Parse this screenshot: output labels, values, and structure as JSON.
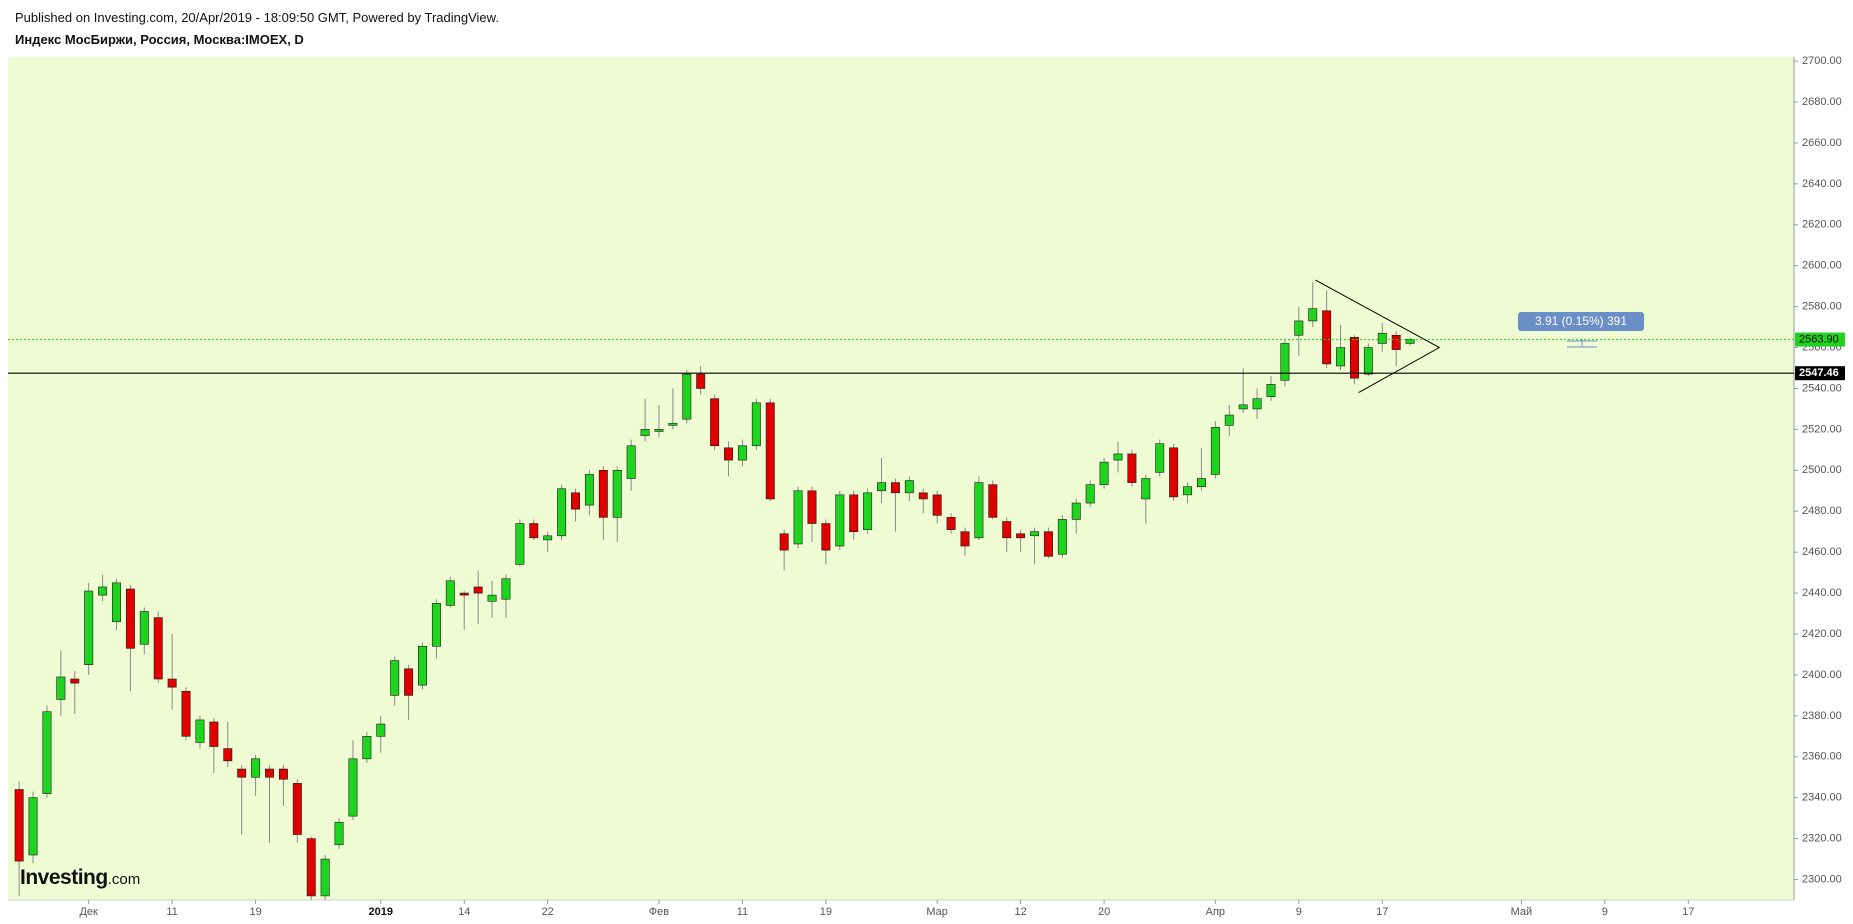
{
  "header": {
    "published": "Published on Investing.com, 20/Apr/2019 - 18:09:50 GMT, Powered by TradingView.",
    "title": "Индекс МосБиржи, Россия, Москва:IMOEX, D"
  },
  "logo": {
    "main": "Investing",
    "suffix": ".com"
  },
  "chart_data": {
    "type": "candlestick",
    "up_color": "#1ed41e",
    "down_color": "#e00000",
    "background": "#effcd3",
    "grid": false,
    "xlim": [
      -0.8,
      127.6
    ],
    "ylim": [
      2290,
      2702
    ],
    "yticks": [
      {
        "value": 2300,
        "label": "2300.00"
      },
      {
        "value": 2320,
        "label": "2320.00"
      },
      {
        "value": 2340,
        "label": "2340.00"
      },
      {
        "value": 2360,
        "label": "2360.00"
      },
      {
        "value": 2380,
        "label": "2380.00"
      },
      {
        "value": 2400,
        "label": "2400.00"
      },
      {
        "value": 2420,
        "label": "2420.00"
      },
      {
        "value": 2440,
        "label": "2440.00"
      },
      {
        "value": 2460,
        "label": "2460.00"
      },
      {
        "value": 2480,
        "label": "2480.00"
      },
      {
        "value": 2500,
        "label": "2500.00"
      },
      {
        "value": 2520,
        "label": "2520.00"
      },
      {
        "value": 2540,
        "label": "2540.00"
      },
      {
        "value": 2560,
        "label": "2560.00"
      },
      {
        "value": 2580,
        "label": "2580.00"
      },
      {
        "value": 2600,
        "label": "2600.00"
      },
      {
        "value": 2620,
        "label": "2620.00"
      },
      {
        "value": 2640,
        "label": "2640.00"
      },
      {
        "value": 2660,
        "label": "2660.00"
      },
      {
        "value": 2680,
        "label": "2680.00"
      },
      {
        "value": 2700,
        "label": "2700.00"
      }
    ],
    "xticks": [
      {
        "value": 5,
        "label": "Дек"
      },
      {
        "value": 11,
        "label": "11"
      },
      {
        "value": 17,
        "label": "19"
      },
      {
        "value": 26,
        "label": "2019"
      },
      {
        "value": 32,
        "label": "14"
      },
      {
        "value": 38,
        "label": "22"
      },
      {
        "value": 46,
        "label": "Фев"
      },
      {
        "value": 52,
        "label": "11"
      },
      {
        "value": 58,
        "label": "19"
      },
      {
        "value": 66,
        "label": "Мар"
      },
      {
        "value": 72,
        "label": "12"
      },
      {
        "value": 78,
        "label": "20"
      },
      {
        "value": 86,
        "label": "Апр"
      },
      {
        "value": 92,
        "label": "9"
      },
      {
        "value": 98,
        "label": "17"
      },
      {
        "value": 108,
        "label": "Май"
      },
      {
        "value": 114,
        "label": "9"
      },
      {
        "value": 120,
        "label": "17"
      }
    ],
    "bold_xtick": "2019",
    "open": [
      2344,
      2312,
      2342,
      2388,
      2398,
      2405,
      2439,
      2426,
      2442,
      2415,
      2428,
      2398,
      2392,
      2367,
      2377,
      2364,
      2354,
      2350,
      2354,
      2354,
      2347,
      2320,
      2292,
      2317,
      2331,
      2359,
      2370,
      2390,
      2403,
      2395,
      2414,
      2434,
      2440,
      2443,
      2436,
      2437,
      2454,
      2474,
      2466,
      2468,
      2489,
      2483,
      2500,
      2477,
      2496,
      2517,
      2519,
      2522,
      2525,
      2547,
      2535,
      2511,
      2505,
      2512,
      2533,
      2469,
      2464,
      2490,
      2474,
      2463,
      2488,
      2471,
      2490,
      2494,
      2489,
      2489,
      2488,
      2477,
      2470,
      2467,
      2493,
      2475,
      2469,
      2468,
      2470,
      2459,
      2476,
      2484,
      2493,
      2505,
      2508,
      2486,
      2499,
      2511,
      2488,
      2492,
      2498,
      2522,
      2530,
      2530,
      2536,
      2544,
      2566,
      2573,
      2578,
      2551,
      2565,
      2547,
      2562,
      2566,
      2562
    ],
    "high": [
      2348,
      2343,
      2385,
      2412,
      2402,
      2445,
      2449,
      2447,
      2444,
      2433,
      2431,
      2420,
      2394,
      2380,
      2379,
      2377,
      2356,
      2361,
      2356,
      2356,
      2349,
      2321,
      2312,
      2330,
      2368,
      2372,
      2380,
      2409,
      2405,
      2416,
      2437,
      2448,
      2441,
      2451,
      2446,
      2449,
      2476,
      2476,
      2470,
      2493,
      2491,
      2500,
      2502,
      2502,
      2515,
      2535,
      2532,
      2540,
      2549,
      2551,
      2537,
      2514,
      2515,
      2535,
      2535,
      2471,
      2492,
      2492,
      2476,
      2490,
      2490,
      2491,
      2506,
      2496,
      2497,
      2491,
      2490,
      2479,
      2472,
      2497,
      2495,
      2477,
      2471,
      2472,
      2472,
      2478,
      2486,
      2495,
      2506,
      2514,
      2510,
      2498,
      2515,
      2513,
      2494,
      2511,
      2524,
      2532,
      2550,
      2540,
      2546,
      2564,
      2580,
      2592,
      2588,
      2571,
      2566,
      2562,
      2572,
      2568,
      2565
    ],
    "low": [
      2292,
      2308,
      2340,
      2380,
      2381,
      2400,
      2436,
      2422,
      2392,
      2410,
      2396,
      2383,
      2368,
      2364,
      2352,
      2355,
      2322,
      2341,
      2318,
      2336,
      2318,
      2290,
      2290,
      2315,
      2329,
      2357,
      2362,
      2385,
      2378,
      2393,
      2408,
      2433,
      2422,
      2425,
      2428,
      2428,
      2453,
      2466,
      2460,
      2466,
      2475,
      2478,
      2466,
      2465,
      2490,
      2514,
      2516,
      2520,
      2523,
      2537,
      2510,
      2497,
      2502,
      2510,
      2485,
      2451,
      2462,
      2465,
      2454,
      2461,
      2466,
      2469,
      2484,
      2470,
      2485,
      2479,
      2474,
      2469,
      2458,
      2466,
      2476,
      2460,
      2460,
      2454,
      2457,
      2457,
      2469,
      2482,
      2491,
      2499,
      2492,
      2474,
      2497,
      2485,
      2484,
      2490,
      2496,
      2517,
      2528,
      2525,
      2534,
      2541,
      2556,
      2570,
      2550,
      2549,
      2542,
      2546,
      2558,
      2551,
      2561
    ],
    "close": [
      2309,
      2340,
      2382,
      2399,
      2396,
      2441,
      2443,
      2445,
      2413,
      2431,
      2398,
      2394,
      2370,
      2378,
      2365,
      2358,
      2350,
      2359,
      2350,
      2349,
      2322,
      2292,
      2310,
      2328,
      2359,
      2370,
      2376,
      2407,
      2390,
      2414,
      2435,
      2446,
      2439,
      2440,
      2439,
      2447,
      2474,
      2467,
      2468,
      2491,
      2481,
      2498,
      2477,
      2500,
      2512,
      2520,
      2520,
      2523,
      2547,
      2540,
      2512,
      2505,
      2512,
      2533,
      2486,
      2461,
      2490,
      2474,
      2461,
      2488,
      2470,
      2489,
      2494,
      2489,
      2495,
      2486,
      2478,
      2471,
      2463,
      2494,
      2477,
      2467,
      2467,
      2470,
      2458,
      2476,
      2484,
      2493,
      2504,
      2508,
      2494,
      2496,
      2513,
      2487,
      2492,
      2496,
      2521,
      2527,
      2532,
      2535,
      2542,
      2562,
      2573,
      2579,
      2552,
      2560,
      2545,
      2560,
      2567,
      2559,
      2564
    ],
    "last_price": {
      "value": 2563.9,
      "label": "2563.90",
      "color": "#1ed41e"
    },
    "level": {
      "value": 2547.46,
      "label": "2547.46",
      "color": "#000000"
    },
    "triangle": {
      "x": [
        93.2,
        102.1,
        96.3
      ],
      "y": [
        2593,
        2560,
        2538
      ]
    },
    "measure": {
      "label": "3.91 (0.15%) 391",
      "color": "#6a8ec8"
    }
  }
}
